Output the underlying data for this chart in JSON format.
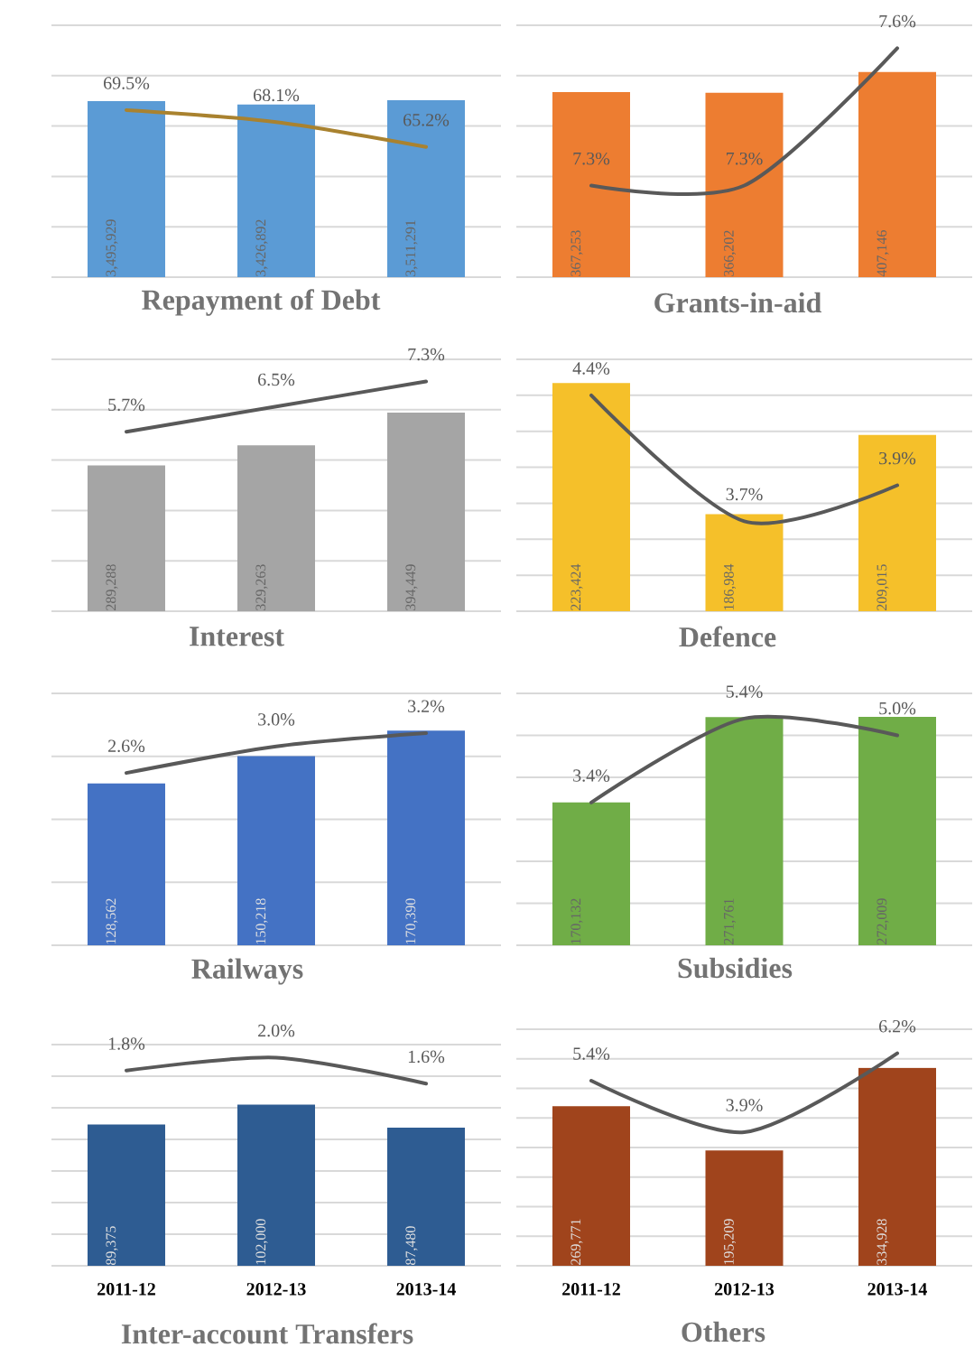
{
  "chart_data": [
    {
      "type": "bar",
      "title": "Repayment of Debt",
      "categories": [
        "2011-12",
        "2012-13",
        "2013-14"
      ],
      "tick_labels": false,
      "grid": "y",
      "ylim": [
        0,
        5000000
      ],
      "yticks": [
        {
          "value": 0,
          "label": null
        },
        {
          "value": 1000000,
          "label": null
        },
        {
          "value": 2000000,
          "label": null
        },
        {
          "value": 3000000,
          "label": null
        },
        {
          "value": 4000000,
          "label": null
        },
        {
          "value": 5000000,
          "label": null
        }
      ],
      "y2lim": [
        50,
        79.4
      ],
      "series": [
        {
          "color": "#5b9bd5",
          "values": [
            3495929,
            3426892,
            3511291
          ],
          "value_labels": [
            "3,495,929",
            "3,426,892",
            "3,511,291"
          ]
        },
        {
          "type": "line",
          "axis": "y2",
          "color": "#a9822f",
          "values": [
            69.5,
            68.1,
            65.2
          ],
          "value_labels": [
            "69.5%",
            "68.1%",
            "65.2%"
          ]
        }
      ]
    },
    {
      "type": "bar",
      "title": "Grants-in-aid",
      "categories": [
        "2011-12",
        "2012-13",
        "2013-14"
      ],
      "tick_labels": false,
      "grid": "y",
      "ylim": [
        0,
        500000
      ],
      "yticks": [
        {
          "value": 0,
          "label": null
        },
        {
          "value": 100000,
          "label": null
        },
        {
          "value": 200000,
          "label": null
        },
        {
          "value": 300000,
          "label": null
        },
        {
          "value": 400000,
          "label": null
        },
        {
          "value": 500000,
          "label": null
        }
      ],
      "y2lim": [
        7.1,
        7.65
      ],
      "series": [
        {
          "color": "#ed7d31",
          "values": [
            367253,
            366202,
            407146
          ],
          "value_labels": [
            "367,253",
            "366,202",
            "407,146"
          ]
        },
        {
          "type": "line",
          "axis": "y2",
          "color": "#595959",
          "values": [
            7.3,
            7.3,
            7.6
          ],
          "value_labels": [
            "7.3%",
            "7.3%",
            "7.6%"
          ]
        }
      ]
    },
    {
      "type": "bar",
      "title": "Interest",
      "categories": [
        "2011-12",
        "2012-13",
        "2013-14"
      ],
      "tick_labels": false,
      "grid": "y",
      "ylim": [
        0,
        500000
      ],
      "yticks": [
        {
          "value": 0,
          "label": null
        },
        {
          "value": 100000,
          "label": null
        },
        {
          "value": 200000,
          "label": null
        },
        {
          "value": 300000,
          "label": null
        },
        {
          "value": 400000,
          "label": null
        },
        {
          "value": 500000,
          "label": null
        }
      ],
      "y2lim": [
        0,
        8
      ],
      "series": [
        {
          "color": "#a5a5a5",
          "values": [
            289288,
            329263,
            394449
          ],
          "value_labels": [
            "289,288",
            "329,263",
            "394,449"
          ]
        },
        {
          "type": "line",
          "axis": "y2",
          "color": "#595959",
          "values": [
            5.7,
            6.5,
            7.3
          ],
          "value_labels": [
            "5.7%",
            "6.5%",
            "7.3%"
          ]
        }
      ]
    },
    {
      "type": "bar",
      "title": "Defence",
      "categories": [
        "2011-12",
        "2012-13",
        "2013-14"
      ],
      "tick_labels": false,
      "grid": "y",
      "ylim": [
        160000,
        230000
      ],
      "yticks": [
        {
          "value": 160000,
          "label": null
        },
        {
          "value": 170000,
          "label": null
        },
        {
          "value": 180000,
          "label": null
        },
        {
          "value": 190000,
          "label": null
        },
        {
          "value": 200000,
          "label": null
        },
        {
          "value": 210000,
          "label": null
        },
        {
          "value": 220000,
          "label": null
        },
        {
          "value": 230000,
          "label": null
        }
      ],
      "y2lim": [
        3.2,
        4.6
      ],
      "series": [
        {
          "color": "#f5c02a",
          "values": [
            223424,
            186984,
            209015
          ],
          "value_labels": [
            "223,424",
            "186,984",
            "209,015"
          ]
        },
        {
          "type": "line",
          "axis": "y2",
          "color": "#595959",
          "values": [
            4.4,
            3.7,
            3.9
          ],
          "value_labels": [
            "4.4%",
            "3.7%",
            "3.9%"
          ]
        }
      ]
    },
    {
      "type": "bar",
      "title": "Railways",
      "categories": [
        "2011-12",
        "2012-13",
        "2013-14"
      ],
      "tick_labels": false,
      "grid": "y",
      "ylim": [
        0,
        200000
      ],
      "yticks": [
        {
          "value": 0,
          "label": null
        },
        {
          "value": 50000,
          "label": null
        },
        {
          "value": 100000,
          "label": null
        },
        {
          "value": 150000,
          "label": null
        },
        {
          "value": 200000,
          "label": null
        }
      ],
      "y2lim": [
        0,
        3.8
      ],
      "series": [
        {
          "color": "#4472c4",
          "values": [
            128562,
            150218,
            170390
          ],
          "value_labels": [
            "128,562",
            "150,218",
            "170,390"
          ]
        },
        {
          "type": "line",
          "axis": "y2",
          "color": "#595959",
          "values": [
            2.6,
            3.0,
            3.2
          ],
          "value_labels": [
            "2.6%",
            "3.0%",
            "3.2%"
          ]
        }
      ]
    },
    {
      "type": "bar",
      "title": "Subsidies",
      "categories": [
        "2011-12",
        "2012-13",
        "2013-14"
      ],
      "tick_labels": false,
      "grid": "y",
      "ylim": [
        0,
        300000
      ],
      "yticks": [
        {
          "value": 0,
          "label": null
        },
        {
          "value": 50000,
          "label": null
        },
        {
          "value": 100000,
          "label": null
        },
        {
          "value": 150000,
          "label": null
        },
        {
          "value": 200000,
          "label": null
        },
        {
          "value": 250000,
          "label": null
        },
        {
          "value": 300000,
          "label": null
        }
      ],
      "y2lim": [
        0,
        6
      ],
      "series": [
        {
          "color": "#70ad47",
          "values": [
            170132,
            271761,
            272009
          ],
          "value_labels": [
            "170,132",
            "271,761",
            "272,009"
          ]
        },
        {
          "type": "line",
          "axis": "y2",
          "color": "#595959",
          "values": [
            3.4,
            5.4,
            5.0
          ],
          "value_labels": [
            "3.4%",
            "5.4%",
            "5.0%"
          ]
        }
      ]
    },
    {
      "type": "bar",
      "title": "Inter-account Transfers",
      "categories": [
        "2011-12",
        "2012-13",
        "2013-14"
      ],
      "tick_labels": "x",
      "grid": "y",
      "ylim": [
        0,
        140000
      ],
      "yticks": [
        {
          "value": 0,
          "label": null
        },
        {
          "value": 20000,
          "label": null
        },
        {
          "value": 40000,
          "label": null
        },
        {
          "value": 60000,
          "label": null
        },
        {
          "value": 80000,
          "label": null
        },
        {
          "value": 100000,
          "label": null
        },
        {
          "value": 120000,
          "label": null
        },
        {
          "value": 140000,
          "label": null
        }
      ],
      "y2lim": [
        -1.2,
        2.2
      ],
      "series": [
        {
          "color": "#2e5c92",
          "values": [
            89375,
            102000,
            87480
          ],
          "value_labels": [
            "89,375",
            "102,000",
            "87,480"
          ]
        },
        {
          "type": "line",
          "axis": "y2",
          "color": "#595959",
          "values": [
            1.8,
            2.0,
            1.6
          ],
          "value_labels": [
            "1.8%",
            "2.0%",
            "1.6%"
          ]
        }
      ]
    },
    {
      "type": "bar",
      "title": "Others",
      "categories": [
        "2011-12",
        "2012-13",
        "2013-14"
      ],
      "tick_labels": "x",
      "grid": "y",
      "ylim": [
        0,
        400000
      ],
      "yticks": [
        {
          "value": 0,
          "label": null
        },
        {
          "value": 50000,
          "label": null
        },
        {
          "value": 100000,
          "label": null
        },
        {
          "value": 150000,
          "label": null
        },
        {
          "value": 200000,
          "label": null
        },
        {
          "value": 250000,
          "label": null
        },
        {
          "value": 300000,
          "label": null
        },
        {
          "value": 350000,
          "label": null
        },
        {
          "value": 400000,
          "label": null
        }
      ],
      "y2lim": [
        0,
        6.9
      ],
      "series": [
        {
          "color": "#a0441c",
          "values": [
            269771,
            195209,
            334928
          ],
          "value_labels": [
            "269,771",
            "195,209",
            "334,928"
          ]
        },
        {
          "type": "line",
          "axis": "y2",
          "color": "#595959",
          "values": [
            5.4,
            3.9,
            6.2
          ],
          "value_labels": [
            "5.4%",
            "3.9%",
            "6.2%"
          ]
        }
      ]
    }
  ]
}
